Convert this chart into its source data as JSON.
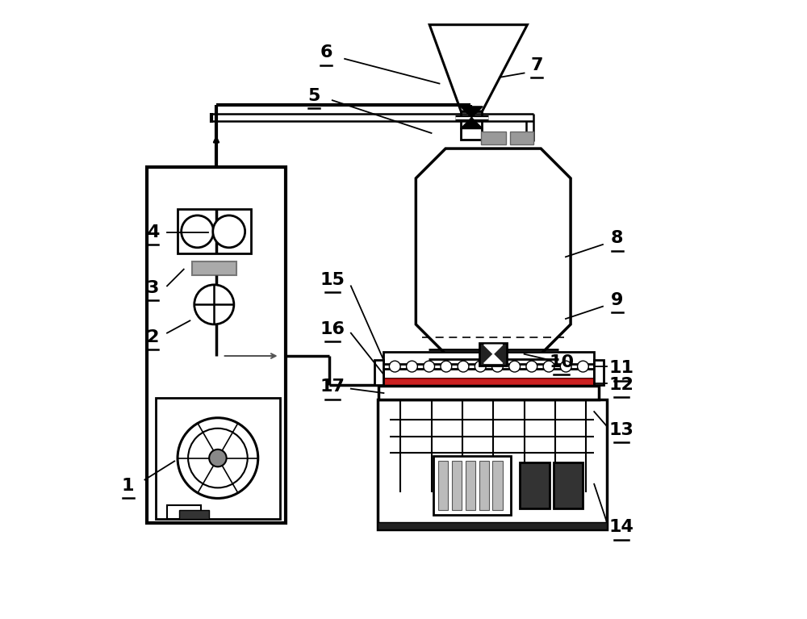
{
  "bg_color": "#ffffff",
  "line_color": "#000000",
  "labels_info": [
    [
      1,
      0.055,
      0.215,
      0.082,
      0.225,
      0.13,
      0.255
    ],
    [
      2,
      0.095,
      0.455,
      0.118,
      0.462,
      0.155,
      0.482
    ],
    [
      3,
      0.095,
      0.535,
      0.118,
      0.538,
      0.145,
      0.565
    ],
    [
      4,
      0.095,
      0.625,
      0.118,
      0.625,
      0.185,
      0.625
    ],
    [
      5,
      0.355,
      0.845,
      0.385,
      0.838,
      0.545,
      0.785
    ],
    [
      6,
      0.375,
      0.915,
      0.405,
      0.905,
      0.558,
      0.865
    ],
    [
      7,
      0.715,
      0.895,
      0.695,
      0.882,
      0.655,
      0.875
    ],
    [
      8,
      0.845,
      0.615,
      0.822,
      0.605,
      0.762,
      0.585
    ],
    [
      9,
      0.845,
      0.515,
      0.822,
      0.505,
      0.762,
      0.485
    ],
    [
      10,
      0.755,
      0.415,
      0.738,
      0.418,
      0.695,
      0.428
    ],
    [
      11,
      0.852,
      0.405,
      0.828,
      0.408,
      0.808,
      0.408
    ],
    [
      12,
      0.852,
      0.378,
      0.828,
      0.381,
      0.808,
      0.381
    ],
    [
      13,
      0.852,
      0.305,
      0.828,
      0.312,
      0.808,
      0.335
    ],
    [
      14,
      0.852,
      0.148,
      0.828,
      0.158,
      0.808,
      0.218
    ],
    [
      15,
      0.385,
      0.548,
      0.415,
      0.538,
      0.468,
      0.418
    ],
    [
      16,
      0.385,
      0.468,
      0.415,
      0.462,
      0.468,
      0.395
    ],
    [
      17,
      0.385,
      0.375,
      0.415,
      0.372,
      0.468,
      0.365
    ]
  ]
}
